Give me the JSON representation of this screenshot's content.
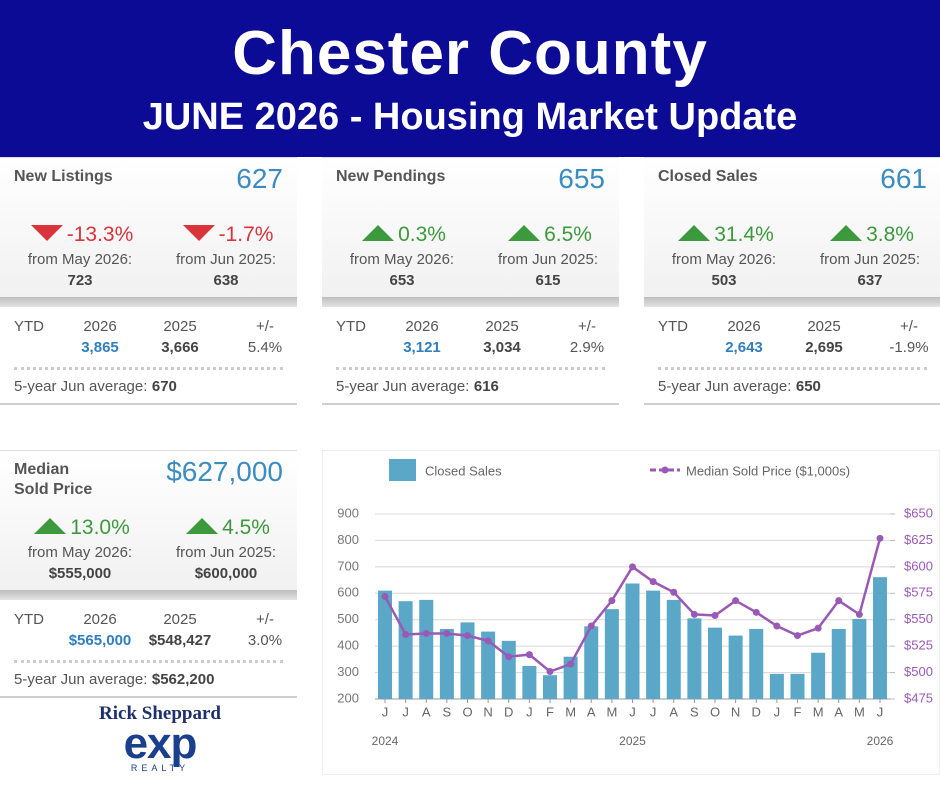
{
  "header": {
    "title": "Chester County",
    "subtitle": "JUNE 2026 - Housing Market Update"
  },
  "cards": [
    {
      "label": "New Listings",
      "value": "627",
      "changes": [
        {
          "direction": "down",
          "pct": "-13.3%",
          "from": "from May 2026:",
          "prior": "723"
        },
        {
          "direction": "down",
          "pct": "-1.7%",
          "from": "from Jun 2025:",
          "prior": "638"
        }
      ],
      "ytd": {
        "label": "YTD",
        "headers": [
          "2026",
          "2025",
          "+/-"
        ],
        "values": [
          "3,865",
          "3,666",
          "5.4%"
        ]
      },
      "average": {
        "label": "5-year Jun average:",
        "value": "670"
      }
    },
    {
      "label": "New Pendings",
      "value": "655",
      "changes": [
        {
          "direction": "up",
          "pct": "0.3%",
          "from": "from May 2026:",
          "prior": "653"
        },
        {
          "direction": "up",
          "pct": "6.5%",
          "from": "from Jun 2025:",
          "prior": "615"
        }
      ],
      "ytd": {
        "label": "YTD",
        "headers": [
          "2026",
          "2025",
          "+/-"
        ],
        "values": [
          "3,121",
          "3,034",
          "2.9%"
        ]
      },
      "average": {
        "label": "5-year Jun average:",
        "value": "616"
      }
    },
    {
      "label": "Closed Sales",
      "value": "661",
      "changes": [
        {
          "direction": "up",
          "pct": "31.4%",
          "from": "from May 2026:",
          "prior": "503"
        },
        {
          "direction": "up",
          "pct": "3.8%",
          "from": "from Jun 2025:",
          "prior": "637"
        }
      ],
      "ytd": {
        "label": "YTD",
        "headers": [
          "2026",
          "2025",
          "+/-"
        ],
        "values": [
          "2,643",
          "2,695",
          "-1.9%"
        ]
      },
      "average": {
        "label": "5-year Jun average:",
        "value": "650"
      }
    },
    {
      "label": "Median\nSold Price",
      "value": "$627,000",
      "changes": [
        {
          "direction": "up",
          "pct": "13.0%",
          "from": "from May 2026:",
          "prior": "$555,000"
        },
        {
          "direction": "up",
          "pct": "4.5%",
          "from": "from Jun 2025:",
          "prior": "$600,000"
        }
      ],
      "ytd": {
        "label": "YTD",
        "headers": [
          "2026",
          "2025",
          "+/-"
        ],
        "values": [
          "$565,000",
          "$548,427",
          "3.0%"
        ]
      },
      "average": {
        "label": "5-year Jun average:",
        "value": "$562,200"
      }
    }
  ],
  "chart_data": {
    "type": "bar",
    "categories": [
      "J",
      "J",
      "A",
      "S",
      "O",
      "N",
      "D",
      "J",
      "F",
      "M",
      "A",
      "M",
      "J",
      "J",
      "A",
      "S",
      "O",
      "N",
      "D",
      "J",
      "F",
      "M",
      "A",
      "M",
      "J"
    ],
    "years": [
      "2024",
      null,
      null,
      null,
      null,
      null,
      null,
      null,
      null,
      null,
      null,
      null,
      "2025",
      null,
      null,
      null,
      null,
      null,
      null,
      null,
      null,
      null,
      null,
      null,
      "2026"
    ],
    "series": [
      {
        "name": "Closed Sales",
        "type": "bar",
        "color": "#5aa7c7",
        "values": [
          610,
          570,
          575,
          465,
          490,
          455,
          420,
          325,
          290,
          360,
          475,
          540,
          637,
          610,
          575,
          505,
          470,
          440,
          465,
          295,
          295,
          375,
          465,
          503,
          661
        ]
      },
      {
        "name": "Median Sold Price ($1,000s)",
        "type": "line",
        "axis": "y2",
        "color": "#9b59b6",
        "values": [
          572,
          536,
          537,
          537,
          535,
          530,
          515,
          517,
          501,
          508,
          544,
          568,
          600,
          586,
          576,
          555,
          554,
          568,
          557,
          544,
          535,
          542,
          568,
          555,
          627
        ]
      }
    ],
    "ylim": [
      200,
      900
    ],
    "yticks": [
      200,
      300,
      400,
      500,
      600,
      700,
      800,
      900
    ],
    "y2lim": [
      475,
      650
    ],
    "y2ticks": [
      {
        "value": 475,
        "label": "$475"
      },
      {
        "value": 500,
        "label": "$500"
      },
      {
        "value": 525,
        "label": "$525"
      },
      {
        "value": 550,
        "label": "$550"
      },
      {
        "value": 575,
        "label": "$575"
      },
      {
        "value": 600,
        "label": "$600"
      },
      {
        "value": 625,
        "label": "$625"
      },
      {
        "value": 650,
        "label": "$650"
      }
    ],
    "grid": true
  },
  "logo": {
    "name": "Rick Sheppard",
    "brand": "exp",
    "tagline": "REALTY"
  }
}
